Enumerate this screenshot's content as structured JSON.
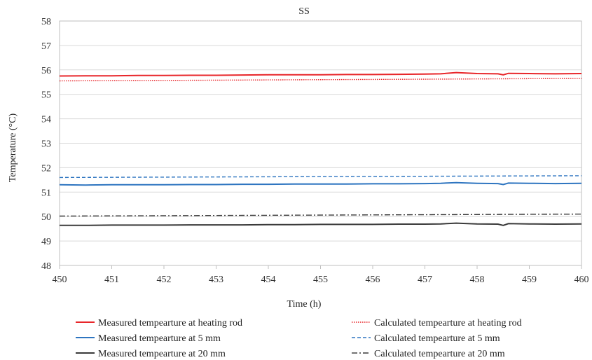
{
  "chart_data": {
    "type": "line",
    "title": "SS",
    "xlabel": "Time (h)",
    "ylabel": "Temperature (°C)",
    "xlim": [
      450,
      460
    ],
    "ylim": [
      48,
      58
    ],
    "x_ticks": [
      450,
      451,
      452,
      453,
      454,
      455,
      456,
      457,
      458,
      459,
      460
    ],
    "y_ticks": [
      48,
      49,
      50,
      51,
      52,
      53,
      54,
      55,
      56,
      57,
      58
    ],
    "grid": "horizontal",
    "legend_position": "bottom",
    "series": [
      {
        "name": "Measured tempearture at heating rod",
        "color": "#e8262a",
        "style": "solid",
        "x": [
          450,
          450.5,
          451,
          451.5,
          452,
          452.5,
          453,
          453.5,
          454,
          454.5,
          455,
          455.5,
          456,
          456.5,
          457,
          457.3,
          457.6,
          458,
          458.4,
          458.5,
          458.6,
          459,
          459.5,
          460
        ],
        "y": [
          55.75,
          55.76,
          55.76,
          55.77,
          55.77,
          55.78,
          55.78,
          55.79,
          55.8,
          55.8,
          55.8,
          55.81,
          55.81,
          55.82,
          55.83,
          55.84,
          55.89,
          55.85,
          55.84,
          55.8,
          55.86,
          55.85,
          55.84,
          55.85
        ]
      },
      {
        "name": "Calculated tempearture at heating rod",
        "color": "#e8262a",
        "style": "dotted",
        "x": [
          450,
          460
        ],
        "y": [
          55.55,
          55.65
        ]
      },
      {
        "name": "Measured tempearture at 5 mm",
        "color": "#2e75c0",
        "style": "solid",
        "x": [
          450,
          450.5,
          451,
          451.5,
          452,
          452.5,
          453,
          453.5,
          454,
          454.5,
          455,
          455.5,
          456,
          456.5,
          457,
          457.3,
          457.6,
          458,
          458.4,
          458.5,
          458.6,
          459,
          459.5,
          460
        ],
        "y": [
          51.3,
          51.29,
          51.3,
          51.3,
          51.3,
          51.31,
          51.31,
          51.32,
          51.32,
          51.33,
          51.33,
          51.33,
          51.34,
          51.34,
          51.35,
          51.36,
          51.39,
          51.36,
          51.35,
          51.31,
          51.37,
          51.36,
          51.35,
          51.36
        ]
      },
      {
        "name": "Calculated tempearture at 5 mm",
        "color": "#2e75c0",
        "style": "dashed",
        "x": [
          450,
          460
        ],
        "y": [
          51.6,
          51.67
        ]
      },
      {
        "name": "Measured tempearture at 20 mm",
        "color": "#3a3a3a",
        "style": "solid",
        "x": [
          450,
          450.5,
          451,
          451.5,
          452,
          452.5,
          453,
          453.5,
          454,
          454.5,
          455,
          455.5,
          456,
          456.5,
          457,
          457.3,
          457.6,
          458,
          458.4,
          458.5,
          458.6,
          459,
          459.5,
          460
        ],
        "y": [
          49.64,
          49.64,
          49.65,
          49.65,
          49.65,
          49.66,
          49.66,
          49.66,
          49.67,
          49.67,
          49.68,
          49.68,
          49.68,
          49.69,
          49.69,
          49.7,
          49.73,
          49.7,
          49.69,
          49.64,
          49.71,
          49.7,
          49.69,
          49.7
        ]
      },
      {
        "name": "Calculated tempearture at 20 mm",
        "color": "#3a3a3a",
        "style": "dashdot",
        "x": [
          450,
          460
        ],
        "y": [
          50.02,
          50.1
        ]
      }
    ]
  }
}
